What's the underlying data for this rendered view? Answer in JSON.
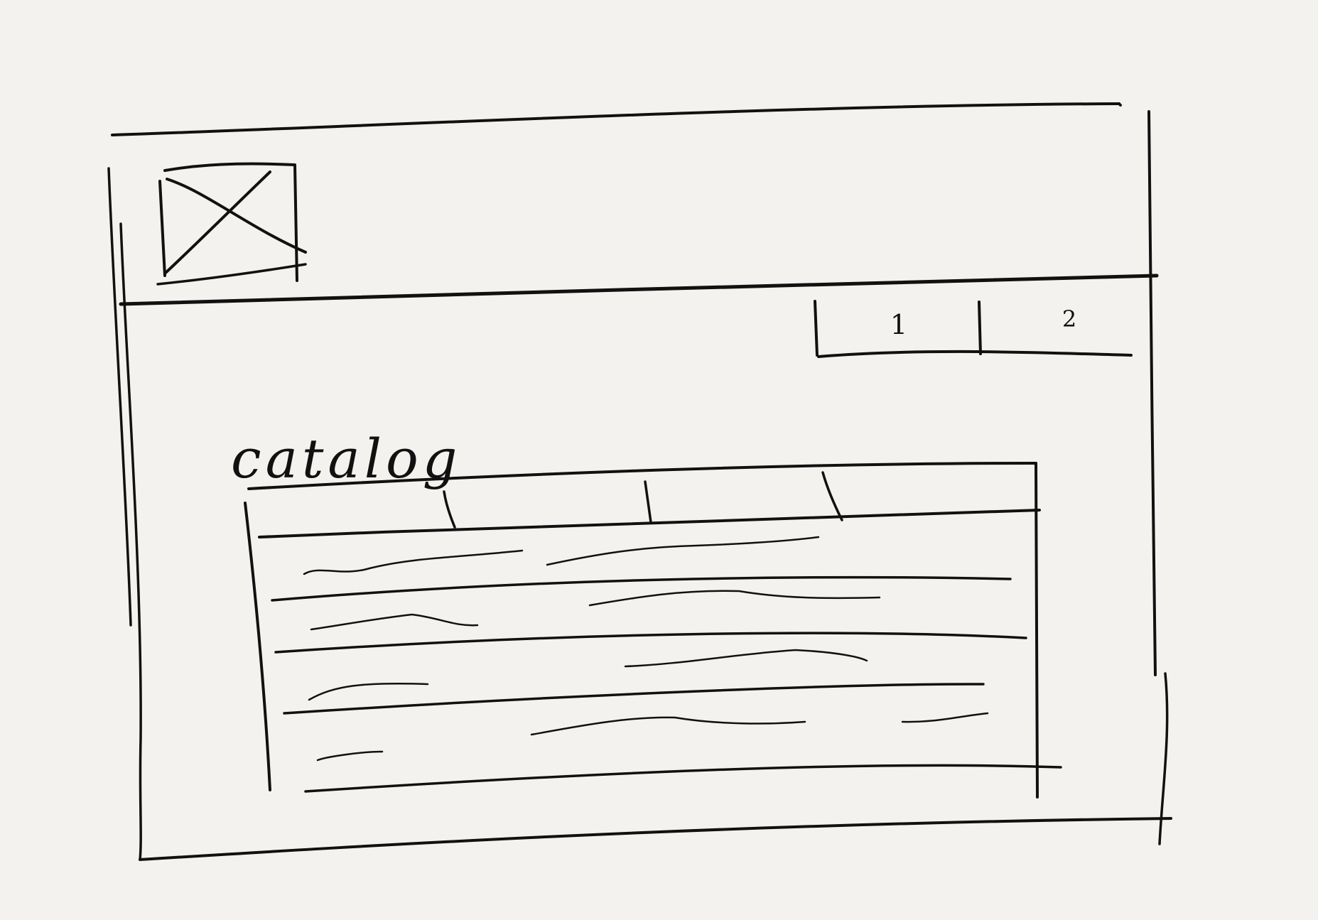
{
  "header": {
    "logo_icon": "image-placeholder-icon"
  },
  "pagination": {
    "pages": [
      "1",
      "2"
    ]
  },
  "catalog": {
    "title": "catalog",
    "table": {
      "columns": 4,
      "rows": 4
    }
  },
  "colors": {
    "ink": "#111111",
    "paper": "#f4f2ee"
  }
}
